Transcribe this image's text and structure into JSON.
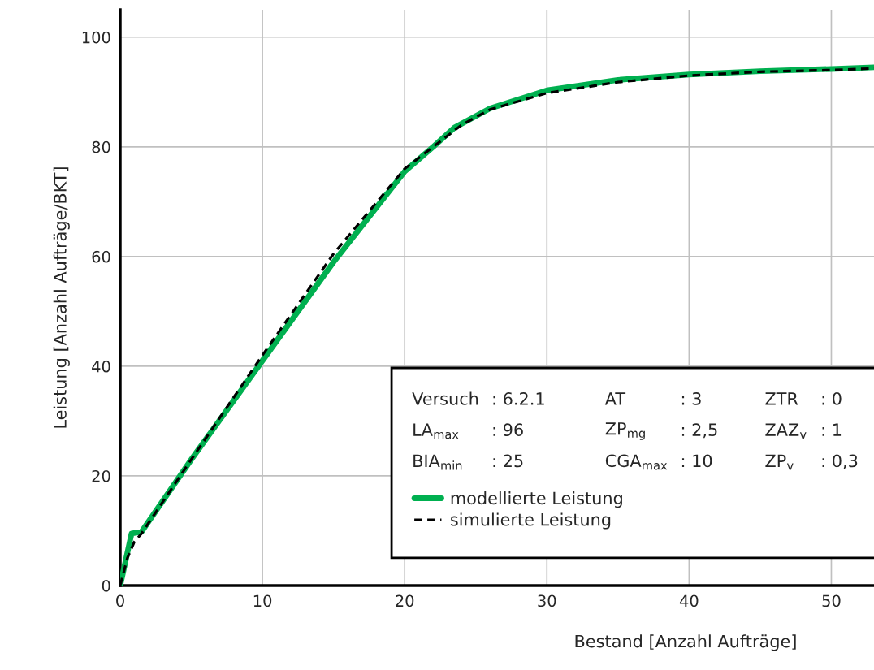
{
  "chart_data": {
    "type": "line",
    "xlabel": "Bestand [Anzahl Aufträge]",
    "ylabel": "Leistung [Anzahl Aufträge/BKT]",
    "xlim": [
      0,
      53
    ],
    "ylim": [
      0,
      105
    ],
    "xticks": [
      0,
      10,
      20,
      30,
      40,
      50
    ],
    "yticks": [
      0,
      20,
      40,
      60,
      80,
      100
    ],
    "grid": true,
    "legend": "bottom right",
    "series": [
      {
        "name": "modellierte Leistung",
        "color": "#00b050",
        "line_style": "solid",
        "x": [
          0,
          0.8,
          1.5,
          5,
          10,
          15,
          20,
          22,
          23.5,
          26,
          30,
          35,
          40,
          45,
          50,
          53
        ],
        "values": [
          0,
          9.5,
          9.8,
          23,
          41,
          59,
          75.5,
          80,
          83.5,
          87,
          90.3,
          92.2,
          93.2,
          93.8,
          94.2,
          94.5
        ]
      },
      {
        "name": "simulierte Leistung",
        "color": "#000000",
        "line_style": "dashed",
        "x": [
          0,
          0.5,
          1,
          1.5,
          5,
          10,
          15,
          20,
          22,
          24,
          26,
          30,
          35,
          40,
          45,
          50,
          53
        ],
        "values": [
          0,
          5,
          8,
          9.5,
          23,
          42,
          60.5,
          76,
          80,
          84,
          86.8,
          89.8,
          91.8,
          93,
          93.7,
          94,
          94.3
        ]
      }
    ],
    "annotations": [
      "Versuch",
      ": 6.2.1",
      "AT",
      ": 3",
      "ZTR",
      ": 0",
      "LA$_{max}$",
      ": 96",
      "ZP$_{mg}$",
      ": 2,5",
      "ZAZ$_{v}$",
      ": 1",
      "BIA$_{min}$",
      ": 25",
      "CGA$_{max}$",
      ": 10",
      "ZP$_{v}$",
      ": 0,3"
    ]
  }
}
